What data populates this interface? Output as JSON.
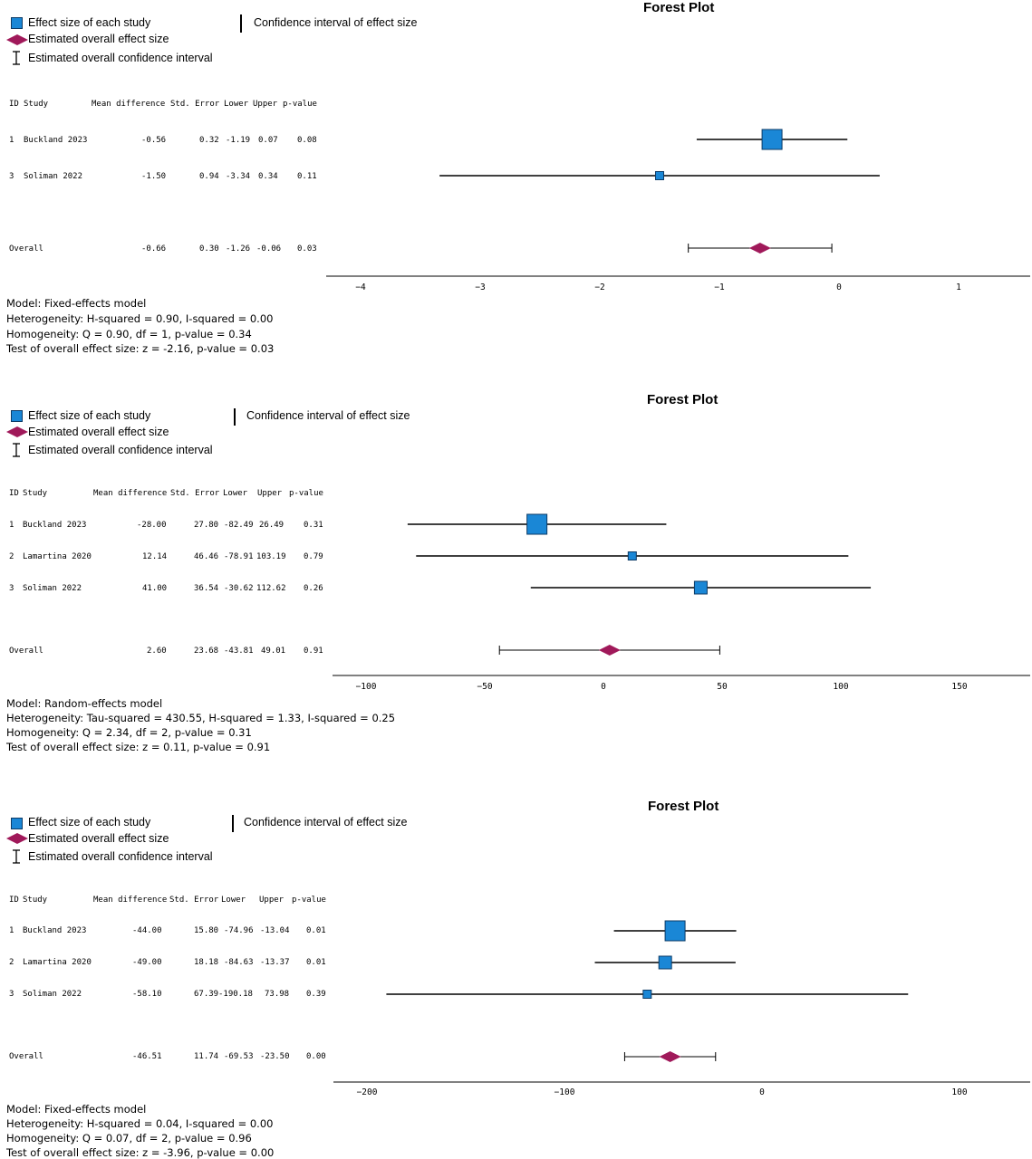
{
  "legend": {
    "effect": "Effect size of each study",
    "ci": "Confidence interval of effect size",
    "overall": "Estimated overall effect size",
    "overall_ci": "Estimated overall confidence interval",
    "study_color": "#1a87d6",
    "overall_color": "#a0195a"
  },
  "headers": {
    "id": "ID",
    "study": "Study",
    "md": "Mean difference",
    "se": "Std. Error",
    "lower": "Lower",
    "upper": "Upper",
    "p": "p-value"
  },
  "panels": [
    {
      "title": "Forest Plot",
      "rows": [
        {
          "id": "1",
          "study": "Buckland 2023",
          "md": "-0.56",
          "se": "0.32",
          "lower": "-1.19",
          "upper": "0.07",
          "p": "0.08"
        },
        {
          "id": "3",
          "study": "Soliman 2022",
          "md": "-1.50",
          "se": "0.94",
          "lower": "-3.34",
          "upper": "0.34",
          "p": "0.11"
        }
      ],
      "overall": {
        "label": "Overall",
        "md": "-0.66",
        "se": "0.30",
        "lower": "-1.26",
        "upper": "-0.06",
        "p": "0.03"
      },
      "footer": [
        "Model: Fixed-effects model",
        "Heterogeneity: H-squared = 0.90, I-squared = 0.00",
        "Homogeneity: Q = 0.90, df = 1, p-value = 0.34",
        "Test of overall effect size: z = -2.16, p-value = 0.03"
      ]
    },
    {
      "title": "Forest Plot",
      "rows": [
        {
          "id": "1",
          "study": "Buckland 2023",
          "md": "-28.00",
          "se": "27.80",
          "lower": "-82.49",
          "upper": "26.49",
          "p": "0.31"
        },
        {
          "id": "2",
          "study": "Lamartina 2020",
          "md": "12.14",
          "se": "46.46",
          "lower": "-78.91",
          "upper": "103.19",
          "p": "0.79"
        },
        {
          "id": "3",
          "study": "Soliman 2022",
          "md": "41.00",
          "se": "36.54",
          "lower": "-30.62",
          "upper": "112.62",
          "p": "0.26"
        }
      ],
      "overall": {
        "label": "Overall",
        "md": "2.60",
        "se": "23.68",
        "lower": "-43.81",
        "upper": "49.01",
        "p": "0.91"
      },
      "footer": [
        "Model: Random-effects model",
        "Heterogeneity: Tau-squared = 430.55, H-squared = 1.33, I-squared = 0.25",
        "Homogeneity: Q = 2.34, df = 2, p-value = 0.31",
        "Test of overall effect size: z = 0.11, p-value = 0.91"
      ]
    },
    {
      "title": "Forest Plot",
      "rows": [
        {
          "id": "1",
          "study": "Buckland 2023",
          "md": "-44.00",
          "se": "15.80",
          "lower": "-74.96",
          "upper": "-13.04",
          "p": "0.01"
        },
        {
          "id": "2",
          "study": "Lamartina 2020",
          "md": "-49.00",
          "se": "18.18",
          "lower": "-84.63",
          "upper": "-13.37",
          "p": "0.01"
        },
        {
          "id": "3",
          "study": "Soliman 2022",
          "md": "-58.10",
          "se": "67.39",
          "lower": "-190.18",
          "upper": "73.98",
          "p": "0.39"
        }
      ],
      "overall": {
        "label": "Overall",
        "md": "-46.51",
        "se": "11.74",
        "lower": "-69.53",
        "upper": "-23.50",
        "p": "0.00"
      },
      "footer": [
        "Model: Fixed-effects model",
        "Heterogeneity: H-squared = 0.04, I-squared = 0.00",
        "Homogeneity: Q = 0.07, df = 2, p-value = 0.96",
        "Test of overall effect size: z = -3.96, p-value = 0.00"
      ]
    }
  ],
  "chart_data": [
    {
      "type": "forest",
      "title": "Forest Plot",
      "xticks": [
        -4,
        -3,
        -2,
        -1,
        0,
        1
      ],
      "xlim": [
        -4.3,
        1.6
      ],
      "studies": [
        {
          "name": "Buckland 2023",
          "effect": -0.56,
          "lower": -1.19,
          "upper": 0.07,
          "weight": "large"
        },
        {
          "name": "Soliman 2022",
          "effect": -1.5,
          "lower": -3.34,
          "upper": 0.34,
          "weight": "small"
        }
      ],
      "overall": {
        "effect": -0.66,
        "lower": -1.26,
        "upper": -0.06
      }
    },
    {
      "type": "forest",
      "title": "Forest Plot",
      "xticks": [
        -100,
        -50,
        0,
        50,
        100,
        150
      ],
      "xlim": [
        -115,
        180
      ],
      "studies": [
        {
          "name": "Buckland 2023",
          "effect": -28.0,
          "lower": -82.49,
          "upper": 26.49,
          "weight": "large"
        },
        {
          "name": "Lamartina 2020",
          "effect": 12.14,
          "lower": -78.91,
          "upper": 103.19,
          "weight": "small"
        },
        {
          "name": "Soliman 2022",
          "effect": 41.0,
          "lower": -30.62,
          "upper": 112.62,
          "weight": "medium"
        }
      ],
      "overall": {
        "effect": 2.6,
        "lower": -43.81,
        "upper": 49.01
      }
    },
    {
      "type": "forest",
      "title": "Forest Plot",
      "xticks": [
        -200,
        -100,
        0,
        100
      ],
      "xlim": [
        -217,
        136
      ],
      "studies": [
        {
          "name": "Buckland 2023",
          "effect": -44.0,
          "lower": -74.96,
          "upper": -13.04,
          "weight": "large"
        },
        {
          "name": "Lamartina 2020",
          "effect": -49.0,
          "lower": -84.63,
          "upper": -13.37,
          "weight": "medium"
        },
        {
          "name": "Soliman 2022",
          "effect": -58.1,
          "lower": -190.18,
          "upper": 73.98,
          "weight": "small"
        }
      ],
      "overall": {
        "effect": -46.51,
        "lower": -69.53,
        "upper": -23.5
      }
    }
  ]
}
